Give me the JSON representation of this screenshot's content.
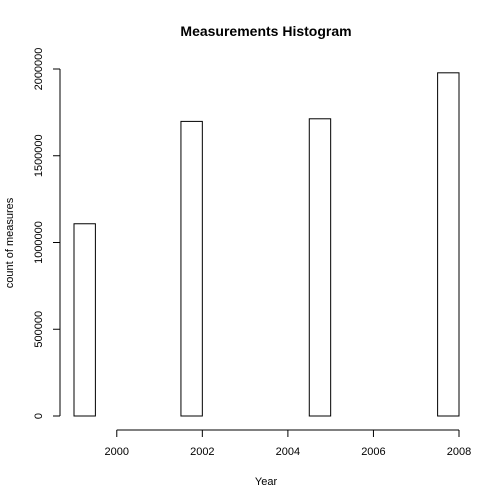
{
  "chart_data": {
    "type": "bar",
    "title": "Measurements Histogram",
    "xlabel": "Year",
    "ylabel": "count of measures",
    "xlim": [
      1999,
      2008
    ],
    "ylim": [
      0,
      2000000
    ],
    "x_ticks": [
      2000,
      2002,
      2004,
      2006,
      2008
    ],
    "y_ticks": [
      0,
      500000,
      1000000,
      1500000,
      2000000
    ],
    "bins": [
      {
        "start": 1999.0,
        "end": 1999.5,
        "count": 1108000
      },
      {
        "start": 1999.5,
        "end": 2000.0,
        "count": 0
      },
      {
        "start": 2000.0,
        "end": 2000.5,
        "count": 0
      },
      {
        "start": 2000.5,
        "end": 2001.0,
        "count": 0
      },
      {
        "start": 2001.0,
        "end": 2001.5,
        "count": 0
      },
      {
        "start": 2001.5,
        "end": 2002.0,
        "count": 1698000
      },
      {
        "start": 2002.0,
        "end": 2002.5,
        "count": 0
      },
      {
        "start": 2002.5,
        "end": 2003.0,
        "count": 0
      },
      {
        "start": 2003.0,
        "end": 2003.5,
        "count": 0
      },
      {
        "start": 2003.5,
        "end": 2004.0,
        "count": 0
      },
      {
        "start": 2004.0,
        "end": 2004.5,
        "count": 0
      },
      {
        "start": 2004.5,
        "end": 2005.0,
        "count": 1713000
      },
      {
        "start": 2005.0,
        "end": 2005.5,
        "count": 0
      },
      {
        "start": 2005.5,
        "end": 2006.0,
        "count": 0
      },
      {
        "start": 2006.0,
        "end": 2006.5,
        "count": 0
      },
      {
        "start": 2006.5,
        "end": 2007.0,
        "count": 0
      },
      {
        "start": 2007.0,
        "end": 2007.5,
        "count": 0
      },
      {
        "start": 2007.5,
        "end": 2008.0,
        "count": 1978000
      }
    ],
    "bar_fill": "#ffffff",
    "bar_stroke": "#000000",
    "grid": false
  }
}
